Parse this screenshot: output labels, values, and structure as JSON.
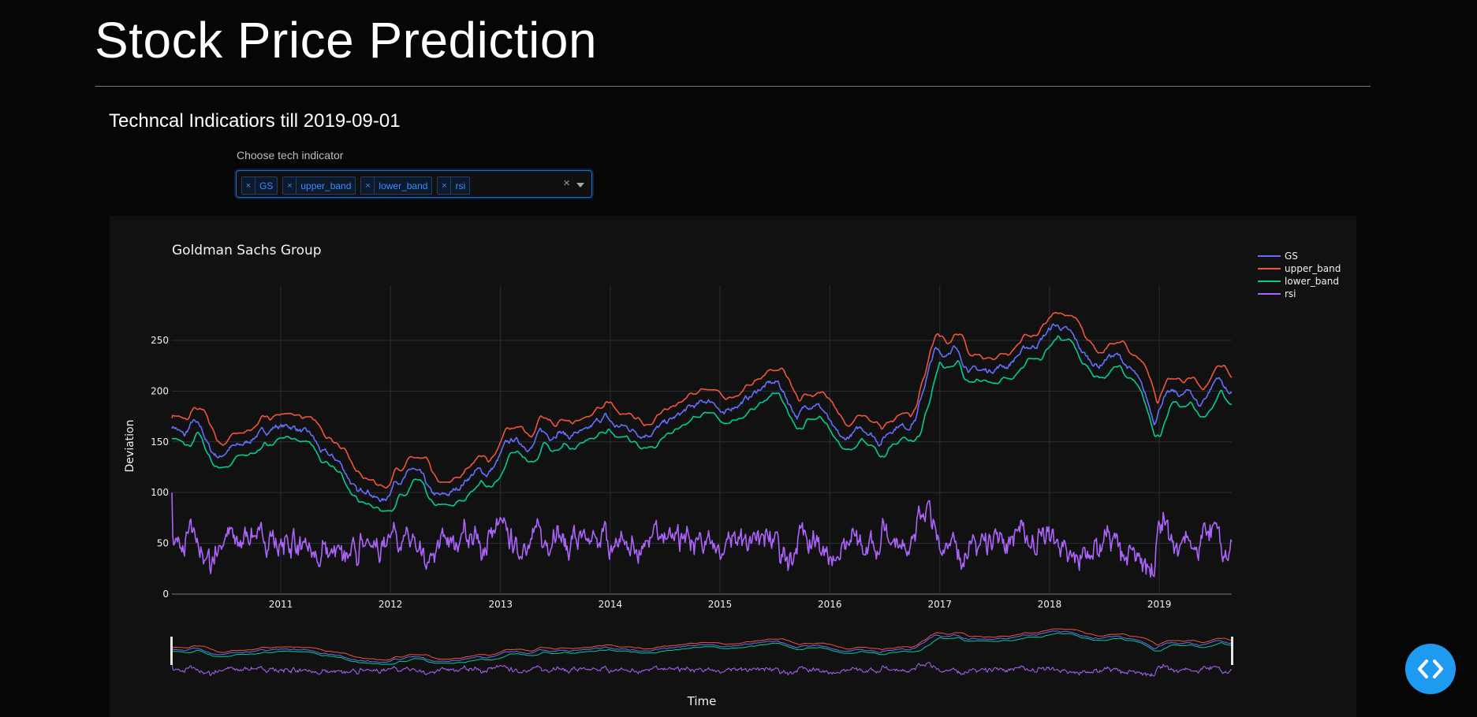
{
  "page": {
    "title": "Stock Price Prediction",
    "section_heading": "Techncal Indicatiors till 2019-09-01"
  },
  "dropdown": {
    "label": "Choose tech indicator",
    "selected": [
      "GS",
      "upper_band",
      "lower_band",
      "rsi"
    ],
    "remove_glyph": "×",
    "clear_glyph": "×"
  },
  "chart_data": {
    "type": "line",
    "title": "Goldman Sachs Group",
    "xlabel": "Time",
    "ylabel": "Deviation",
    "x_ticks": [
      "2011",
      "2012",
      "2013",
      "2014",
      "2015",
      "2016",
      "2017",
      "2018",
      "2019"
    ],
    "y_ticks": [
      "0",
      "50",
      "100",
      "150",
      "200",
      "250"
    ],
    "xlim": [
      "2010-01-04",
      "2019-08-30"
    ],
    "ylim": [
      0,
      295
    ],
    "grid": true,
    "legend_position": "top-right",
    "range_slider": true,
    "series": [
      {
        "name": "GS",
        "color": "#636efa"
      },
      {
        "name": "upper_band",
        "color": "#ef553b"
      },
      {
        "name": "lower_band",
        "color": "#00cc96"
      },
      {
        "name": "rsi",
        "color": "#ab63fa"
      }
    ],
    "gs_monthly": [
      [
        "2010-01",
        165
      ],
      [
        "2010-02",
        155
      ],
      [
        "2010-03",
        170
      ],
      [
        "2010-04",
        160
      ],
      [
        "2010-05",
        140
      ],
      [
        "2010-06",
        135
      ],
      [
        "2010-07",
        145
      ],
      [
        "2010-08",
        145
      ],
      [
        "2010-09",
        150
      ],
      [
        "2010-10",
        158
      ],
      [
        "2010-11",
        160
      ],
      [
        "2010-12",
        166
      ],
      [
        "2011-01",
        165
      ],
      [
        "2011-02",
        165
      ],
      [
        "2011-03",
        160
      ],
      [
        "2011-04",
        155
      ],
      [
        "2011-05",
        140
      ],
      [
        "2011-06",
        135
      ],
      [
        "2011-07",
        130
      ],
      [
        "2011-08",
        115
      ],
      [
        "2011-09",
        98
      ],
      [
        "2011-10",
        105
      ],
      [
        "2011-11",
        95
      ],
      [
        "2011-12",
        92
      ],
      [
        "2012-01",
        112
      ],
      [
        "2012-02",
        115
      ],
      [
        "2012-03",
        123
      ],
      [
        "2012-04",
        115
      ],
      [
        "2012-05",
        98
      ],
      [
        "2012-06",
        95
      ],
      [
        "2012-07",
        98
      ],
      [
        "2012-08",
        105
      ],
      [
        "2012-09",
        115
      ],
      [
        "2012-10",
        122
      ],
      [
        "2012-11",
        118
      ],
      [
        "2012-12",
        127
      ],
      [
        "2013-01",
        145
      ],
      [
        "2013-02",
        152
      ],
      [
        "2013-03",
        148
      ],
      [
        "2013-04",
        145
      ],
      [
        "2013-05",
        160
      ],
      [
        "2013-06",
        155
      ],
      [
        "2013-07",
        163
      ],
      [
        "2013-08",
        155
      ],
      [
        "2013-09",
        160
      ],
      [
        "2013-10",
        158
      ],
      [
        "2013-11",
        168
      ],
      [
        "2013-12",
        175
      ],
      [
        "2014-01",
        165
      ],
      [
        "2014-02",
        165
      ],
      [
        "2014-03",
        162
      ],
      [
        "2014-04",
        158
      ],
      [
        "2014-05",
        160
      ],
      [
        "2014-06",
        165
      ],
      [
        "2014-07",
        170
      ],
      [
        "2014-08",
        175
      ],
      [
        "2014-09",
        182
      ],
      [
        "2014-10",
        185
      ],
      [
        "2014-11",
        190
      ],
      [
        "2014-12",
        190
      ],
      [
        "2015-01",
        175
      ],
      [
        "2015-02",
        185
      ],
      [
        "2015-03",
        190
      ],
      [
        "2015-04",
        195
      ],
      [
        "2015-05",
        203
      ],
      [
        "2015-06",
        207
      ],
      [
        "2015-07",
        208
      ],
      [
        "2015-08",
        190
      ],
      [
        "2015-09",
        175
      ],
      [
        "2015-10",
        185
      ],
      [
        "2015-11",
        190
      ],
      [
        "2015-12",
        180
      ],
      [
        "2016-01",
        160
      ],
      [
        "2016-02",
        150
      ],
      [
        "2016-03",
        157
      ],
      [
        "2016-04",
        163
      ],
      [
        "2016-05",
        160
      ],
      [
        "2016-06",
        150
      ],
      [
        "2016-07",
        160
      ],
      [
        "2016-08",
        168
      ],
      [
        "2016-09",
        165
      ],
      [
        "2016-10",
        175
      ],
      [
        "2016-11",
        210
      ],
      [
        "2016-12",
        240
      ],
      [
        "2017-01",
        235
      ],
      [
        "2017-02",
        245
      ],
      [
        "2017-03",
        230
      ],
      [
        "2017-04",
        222
      ],
      [
        "2017-05",
        220
      ],
      [
        "2017-06",
        220
      ],
      [
        "2017-07",
        225
      ],
      [
        "2017-08",
        225
      ],
      [
        "2017-09",
        235
      ],
      [
        "2017-10",
        242
      ],
      [
        "2017-11",
        245
      ],
      [
        "2017-12",
        255
      ],
      [
        "2018-01",
        265
      ],
      [
        "2018-02",
        262
      ],
      [
        "2018-03",
        255
      ],
      [
        "2018-04",
        240
      ],
      [
        "2018-05",
        230
      ],
      [
        "2018-06",
        225
      ],
      [
        "2018-07",
        235
      ],
      [
        "2018-08",
        235
      ],
      [
        "2018-09",
        225
      ],
      [
        "2018-10",
        215
      ],
      [
        "2018-11",
        195
      ],
      [
        "2018-12",
        170
      ],
      [
        "2019-01",
        195
      ],
      [
        "2019-02",
        198
      ],
      [
        "2019-03",
        195
      ],
      [
        "2019-04",
        200
      ],
      [
        "2019-05",
        185
      ],
      [
        "2019-06",
        200
      ],
      [
        "2019-07",
        215
      ],
      [
        "2019-08",
        200
      ]
    ]
  }
}
